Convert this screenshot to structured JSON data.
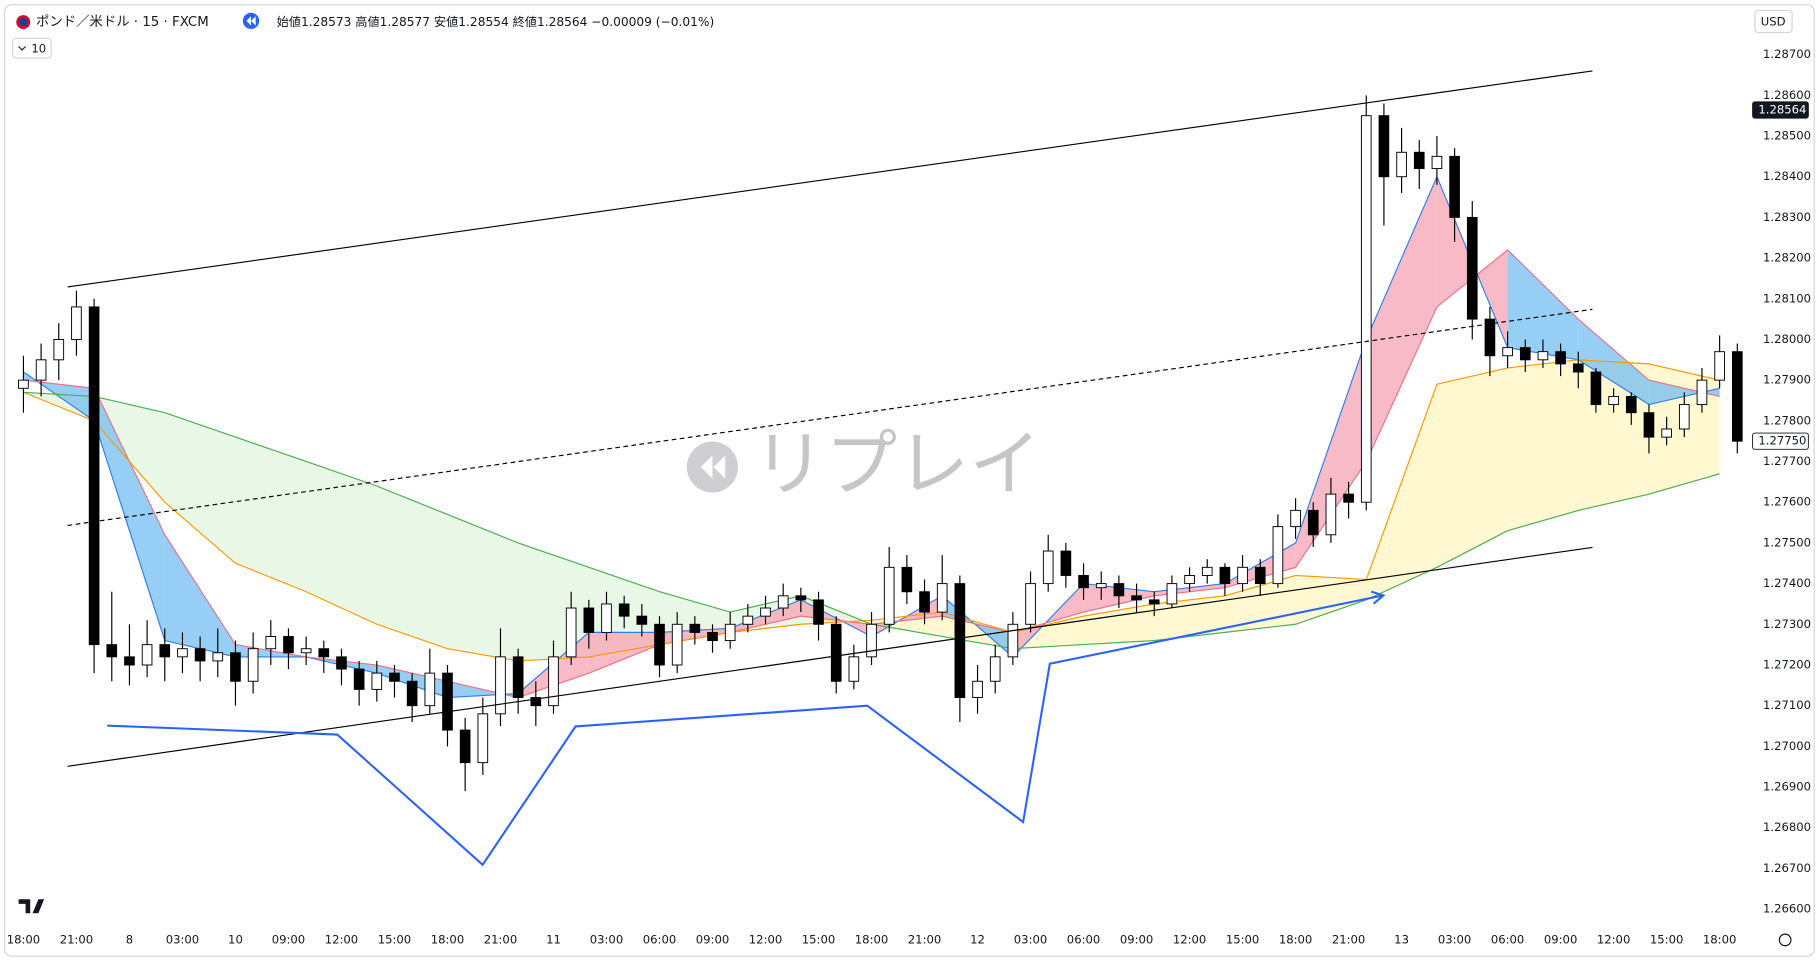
{
  "header": {
    "symbol": "ポンド／米ドル · 15 · FXCM",
    "open": "始値1.28573",
    "high": "高値1.28577",
    "low": "安値1.28554",
    "close": "終値1.28564",
    "change": "−0.00009 (−0.01%)",
    "indicator_count": "10",
    "currency": "USD"
  },
  "chart_data": {
    "type": "candlestick",
    "watermark": "リプレイ",
    "grid": false,
    "xlim": [
      -0.8,
      97.8
    ],
    "ylim": [
      1.2655,
      1.2882
    ],
    "xticks": [
      {
        "value": 0,
        "label": "18:00"
      },
      {
        "value": 3,
        "label": "21:00"
      },
      {
        "value": 6,
        "label": "8"
      },
      {
        "value": 9,
        "label": "03:00"
      },
      {
        "value": 12,
        "label": "10"
      },
      {
        "value": 15,
        "label": "09:00"
      },
      {
        "value": 18,
        "label": "12:00"
      },
      {
        "value": 21,
        "label": "15:00"
      },
      {
        "value": 24,
        "label": "18:00"
      },
      {
        "value": 27,
        "label": "21:00"
      },
      {
        "value": 30,
        "label": "11"
      },
      {
        "value": 33,
        "label": "03:00"
      },
      {
        "value": 36,
        "label": "06:00"
      },
      {
        "value": 39,
        "label": "09:00"
      },
      {
        "value": 42,
        "label": "12:00"
      },
      {
        "value": 45,
        "label": "15:00"
      },
      {
        "value": 48,
        "label": "18:00"
      },
      {
        "value": 51,
        "label": "21:00"
      },
      {
        "value": 54,
        "label": "12"
      },
      {
        "value": 57,
        "label": "03:00"
      },
      {
        "value": 60,
        "label": "06:00"
      },
      {
        "value": 63,
        "label": "09:00"
      },
      {
        "value": 66,
        "label": "12:00"
      },
      {
        "value": 69,
        "label": "15:00"
      },
      {
        "value": 72,
        "label": "18:00"
      },
      {
        "value": 75,
        "label": "21:00"
      },
      {
        "value": 78,
        "label": "13"
      },
      {
        "value": 81,
        "label": "03:00"
      },
      {
        "value": 84,
        "label": "06:00"
      },
      {
        "value": 87,
        "label": "09:00"
      },
      {
        "value": 90,
        "label": "12:00"
      },
      {
        "value": 93,
        "label": "15:00"
      },
      {
        "value": 96,
        "label": "18:00"
      }
    ],
    "yticks": [
      {
        "value": 1.266,
        "label": "1.26600"
      },
      {
        "value": 1.267,
        "label": "1.26700"
      },
      {
        "value": 1.268,
        "label": "1.26800"
      },
      {
        "value": 1.269,
        "label": "1.26900"
      },
      {
        "value": 1.27,
        "label": "1.27000"
      },
      {
        "value": 1.271,
        "label": "1.27100"
      },
      {
        "value": 1.272,
        "label": "1.27200"
      },
      {
        "value": 1.273,
        "label": "1.27300"
      },
      {
        "value": 1.274,
        "label": "1.27400"
      },
      {
        "value": 1.275,
        "label": "1.27500"
      },
      {
        "value": 1.276,
        "label": "1.27600"
      },
      {
        "value": 1.277,
        "label": "1.27700"
      },
      {
        "value": 1.278,
        "label": "1.27800"
      },
      {
        "value": 1.279,
        "label": "1.27900"
      },
      {
        "value": 1.28,
        "label": "1.28000"
      },
      {
        "value": 1.281,
        "label": "1.28100"
      },
      {
        "value": 1.282,
        "label": "1.28200"
      },
      {
        "value": 1.283,
        "label": "1.28300"
      },
      {
        "value": 1.284,
        "label": "1.28400"
      },
      {
        "value": 1.285,
        "label": "1.28500"
      },
      {
        "value": 1.286,
        "label": "1.28600"
      },
      {
        "value": 1.287,
        "label": "1.28700"
      }
    ],
    "up_color": "#ffffff",
    "down_color": "#000000",
    "candles": [
      [
        0,
        1.2788,
        1.2796,
        1.2782,
        1.279
      ],
      [
        1,
        1.279,
        1.2799,
        1.2786,
        1.2795
      ],
      [
        2,
        1.2795,
        1.2804,
        1.279,
        1.28
      ],
      [
        3,
        1.28,
        1.2812,
        1.2796,
        1.2808
      ],
      [
        4,
        1.2808,
        1.281,
        1.2718,
        1.2725
      ],
      [
        5,
        1.2725,
        1.2738,
        1.2716,
        1.2722
      ],
      [
        6,
        1.2722,
        1.273,
        1.2715,
        1.272
      ],
      [
        7,
        1.272,
        1.2731,
        1.2717,
        1.2725
      ],
      [
        8,
        1.2725,
        1.2729,
        1.2716,
        1.2722
      ],
      [
        9,
        1.2722,
        1.2728,
        1.2718,
        1.2724
      ],
      [
        10,
        1.2724,
        1.2727,
        1.2716,
        1.2721
      ],
      [
        11,
        1.2721,
        1.2729,
        1.2717,
        1.2723
      ],
      [
        12,
        1.2723,
        1.2726,
        1.271,
        1.2716
      ],
      [
        13,
        1.2716,
        1.2728,
        1.2713,
        1.2724
      ],
      [
        14,
        1.2724,
        1.2731,
        1.272,
        1.2727
      ],
      [
        15,
        1.2727,
        1.2729,
        1.2719,
        1.2723
      ],
      [
        16,
        1.2723,
        1.2727,
        1.272,
        1.2724
      ],
      [
        17,
        1.2724,
        1.2726,
        1.2718,
        1.2722
      ],
      [
        18,
        1.2722,
        1.2724,
        1.2715,
        1.2719
      ],
      [
        19,
        1.2719,
        1.2721,
        1.271,
        1.2714
      ],
      [
        20,
        1.2714,
        1.2721,
        1.2711,
        1.2718
      ],
      [
        21,
        1.2718,
        1.272,
        1.2712,
        1.2716
      ],
      [
        22,
        1.2716,
        1.2718,
        1.2706,
        1.271
      ],
      [
        23,
        1.271,
        1.2724,
        1.2708,
        1.2718
      ],
      [
        24,
        1.2718,
        1.272,
        1.27,
        1.2704
      ],
      [
        25,
        1.2704,
        1.2707,
        1.2689,
        1.2696
      ],
      [
        26,
        1.2696,
        1.2712,
        1.2693,
        1.2708
      ],
      [
        27,
        1.2708,
        1.2729,
        1.2705,
        1.2722
      ],
      [
        28,
        1.2722,
        1.2724,
        1.2708,
        1.2712
      ],
      [
        29,
        1.2712,
        1.2716,
        1.2705,
        1.271
      ],
      [
        30,
        1.271,
        1.2726,
        1.2708,
        1.2722
      ],
      [
        31,
        1.2722,
        1.2738,
        1.272,
        1.2734
      ],
      [
        32,
        1.2734,
        1.2736,
        1.2724,
        1.2728
      ],
      [
        33,
        1.2728,
        1.2738,
        1.2726,
        1.2735
      ],
      [
        34,
        1.2735,
        1.2737,
        1.2729,
        1.2732
      ],
      [
        35,
        1.2732,
        1.2735,
        1.2727,
        1.273
      ],
      [
        36,
        1.273,
        1.2732,
        1.2717,
        1.272
      ],
      [
        37,
        1.272,
        1.2733,
        1.2718,
        1.273
      ],
      [
        38,
        1.273,
        1.2732,
        1.2725,
        1.2728
      ],
      [
        39,
        1.2728,
        1.273,
        1.2723,
        1.2726
      ],
      [
        40,
        1.2726,
        1.2733,
        1.2724,
        1.273
      ],
      [
        41,
        1.273,
        1.2735,
        1.2728,
        1.2732
      ],
      [
        42,
        1.2732,
        1.2737,
        1.273,
        1.2734
      ],
      [
        43,
        1.2734,
        1.274,
        1.2732,
        1.2737
      ],
      [
        44,
        1.2737,
        1.2739,
        1.2733,
        1.2736
      ],
      [
        45,
        1.2736,
        1.2738,
        1.2726,
        1.273
      ],
      [
        46,
        1.273,
        1.2732,
        1.2713,
        1.2716
      ],
      [
        47,
        1.2716,
        1.2725,
        1.2714,
        1.2722
      ],
      [
        48,
        1.2722,
        1.2733,
        1.272,
        1.273
      ],
      [
        49,
        1.273,
        1.2749,
        1.2728,
        1.2744
      ],
      [
        50,
        1.2744,
        1.2747,
        1.2735,
        1.2738
      ],
      [
        51,
        1.2738,
        1.2741,
        1.273,
        1.2733
      ],
      [
        52,
        1.2733,
        1.2747,
        1.2731,
        1.274
      ],
      [
        53,
        1.274,
        1.2742,
        1.2706,
        1.2712
      ],
      [
        54,
        1.2712,
        1.272,
        1.2708,
        1.2716
      ],
      [
        55,
        1.2716,
        1.2725,
        1.2713,
        1.2722
      ],
      [
        56,
        1.2722,
        1.2733,
        1.272,
        1.273
      ],
      [
        57,
        1.273,
        1.2743,
        1.2728,
        1.274
      ],
      [
        58,
        1.274,
        1.2752,
        1.2738,
        1.2748
      ],
      [
        59,
        1.2748,
        1.275,
        1.2739,
        1.2742
      ],
      [
        60,
        1.2742,
        1.2745,
        1.2736,
        1.2739
      ],
      [
        61,
        1.2739,
        1.2743,
        1.2736,
        1.274
      ],
      [
        62,
        1.274,
        1.2742,
        1.2734,
        1.2737
      ],
      [
        63,
        1.2737,
        1.274,
        1.2733,
        1.2736
      ],
      [
        64,
        1.2736,
        1.2738,
        1.2732,
        1.2735
      ],
      [
        65,
        1.2735,
        1.2742,
        1.2734,
        1.274
      ],
      [
        66,
        1.274,
        1.2744,
        1.2738,
        1.2742
      ],
      [
        67,
        1.2742,
        1.2746,
        1.274,
        1.2744
      ],
      [
        68,
        1.2744,
        1.2745,
        1.2737,
        1.274
      ],
      [
        69,
        1.274,
        1.2747,
        1.2738,
        1.2744
      ],
      [
        70,
        1.2744,
        1.2746,
        1.2737,
        1.274
      ],
      [
        71,
        1.274,
        1.2757,
        1.2739,
        1.2754
      ],
      [
        72,
        1.2754,
        1.2761,
        1.2751,
        1.2758
      ],
      [
        73,
        1.2758,
        1.276,
        1.2749,
        1.2752
      ],
      [
        74,
        1.2752,
        1.2766,
        1.275,
        1.2762
      ],
      [
        75,
        1.2762,
        1.2765,
        1.2756,
        1.276
      ],
      [
        76,
        1.276,
        1.286,
        1.2758,
        1.2855
      ],
      [
        77,
        1.2855,
        1.2858,
        1.2828,
        1.284
      ],
      [
        78,
        1.284,
        1.2852,
        1.2836,
        1.2846
      ],
      [
        79,
        1.2846,
        1.2849,
        1.2837,
        1.2842
      ],
      [
        80,
        1.2842,
        1.285,
        1.2838,
        1.2845
      ],
      [
        81,
        1.2845,
        1.2847,
        1.2824,
        1.283
      ],
      [
        82,
        1.283,
        1.2834,
        1.28,
        1.2805
      ],
      [
        83,
        1.2805,
        1.2808,
        1.2791,
        1.2796
      ],
      [
        84,
        1.2796,
        1.2802,
        1.2793,
        1.2798
      ],
      [
        85,
        1.2798,
        1.28,
        1.2792,
        1.2795
      ],
      [
        86,
        1.2795,
        1.28,
        1.2793,
        1.2797
      ],
      [
        87,
        1.2797,
        1.2799,
        1.2791,
        1.2794
      ],
      [
        88,
        1.2794,
        1.2797,
        1.2788,
        1.2792
      ],
      [
        89,
        1.2792,
        1.2793,
        1.2782,
        1.2784
      ],
      [
        90,
        1.2784,
        1.2788,
        1.2782,
        1.2786
      ],
      [
        91,
        1.2786,
        1.2787,
        1.2779,
        1.2782
      ],
      [
        92,
        1.2782,
        1.2784,
        1.2772,
        1.2776
      ],
      [
        93,
        1.2776,
        1.2781,
        1.2774,
        1.2778
      ],
      [
        94,
        1.2778,
        1.2787,
        1.2776,
        1.2784
      ],
      [
        95,
        1.2784,
        1.2793,
        1.2782,
        1.279
      ],
      [
        96,
        1.279,
        1.2801,
        1.2788,
        1.2797
      ],
      [
        97,
        1.2797,
        1.2799,
        1.2772,
        1.2775
      ]
    ],
    "ma_x": [
      0,
      4,
      8,
      12,
      16,
      20,
      24,
      28,
      32,
      36,
      40,
      44,
      48,
      52,
      56,
      60,
      64,
      68,
      72,
      76,
      80,
      84,
      88,
      92,
      96
    ],
    "series": [
      {
        "color": "#2f7fe8",
        "values": [
          1.2792,
          1.278,
          1.2726,
          1.2722,
          1.2722,
          1.2718,
          1.2712,
          1.2713,
          1.2728,
          1.2728,
          1.2729,
          1.2736,
          1.2727,
          1.2737,
          1.2722,
          1.274,
          1.2738,
          1.274,
          1.275,
          1.28,
          1.284,
          1.2798,
          1.2795,
          1.2784,
          1.2788
        ]
      },
      {
        "color": "#ef6f86",
        "values": [
          1.279,
          1.2788,
          1.2752,
          1.2725,
          1.2722,
          1.272,
          1.2716,
          1.2712,
          1.2718,
          1.2725,
          1.2728,
          1.2732,
          1.273,
          1.2732,
          1.2728,
          1.2733,
          1.2737,
          1.2739,
          1.2744,
          1.277,
          1.2808,
          1.2822,
          1.2805,
          1.279,
          1.2786
        ]
      },
      {
        "color": "#ff9800",
        "values": [
          1.2787,
          1.278,
          1.276,
          1.2745,
          1.2738,
          1.273,
          1.2724,
          1.2721,
          1.2722,
          1.2725,
          1.2728,
          1.273,
          1.2731,
          1.2733,
          1.2728,
          1.2732,
          1.2735,
          1.2737,
          1.2742,
          1.2741,
          1.2789,
          1.2793,
          1.2795,
          1.2794,
          1.279
        ]
      },
      {
        "color": "#4caf50",
        "values": [
          1.2787,
          1.2786,
          1.2782,
          1.2776,
          1.277,
          1.2764,
          1.2757,
          1.275,
          1.2744,
          1.2738,
          1.2733,
          1.2737,
          1.273,
          1.2727,
          1.2724,
          1.2725,
          1.2726,
          1.2728,
          1.273,
          1.2736,
          1.2744,
          1.2753,
          1.2758,
          1.2762,
          1.2767
        ]
      }
    ],
    "cloud_colors": [
      "#f7a3b4",
      "#74bdf2"
    ],
    "base_colors": [
      "#fff5c0",
      "#e2f5de"
    ],
    "drawings": [
      {
        "color": "#000000",
        "dashed": false,
        "arrow": false,
        "points": [
          [
            2.5,
            1.28129
          ],
          [
            88.8,
            1.2866
          ]
        ]
      },
      {
        "color": "#000000",
        "dashed": true,
        "arrow": false,
        "points": [
          [
            2.5,
            1.27543
          ],
          [
            88.8,
            1.28074
          ]
        ]
      },
      {
        "color": "#000000",
        "dashed": false,
        "arrow": false,
        "points": [
          [
            2.5,
            1.26951
          ],
          [
            88.8,
            1.27489
          ]
        ]
      },
      {
        "color": "#2962ff",
        "dashed": false,
        "arrow": true,
        "points": [
          [
            4.74,
            1.27051
          ],
          [
            17.76,
            1.27029
          ],
          [
            25.99,
            1.26709
          ],
          [
            31.25,
            1.27049
          ],
          [
            47.76,
            1.271
          ],
          [
            56.58,
            1.26814
          ],
          [
            58.09,
            1.27203
          ],
          [
            76.97,
            1.27371
          ]
        ]
      }
    ],
    "price_labels": [
      {
        "value": 1.28564,
        "label": "1.28564",
        "style": "dark"
      },
      {
        "value": 1.2775,
        "label": "1.27750",
        "style": "light"
      }
    ]
  }
}
